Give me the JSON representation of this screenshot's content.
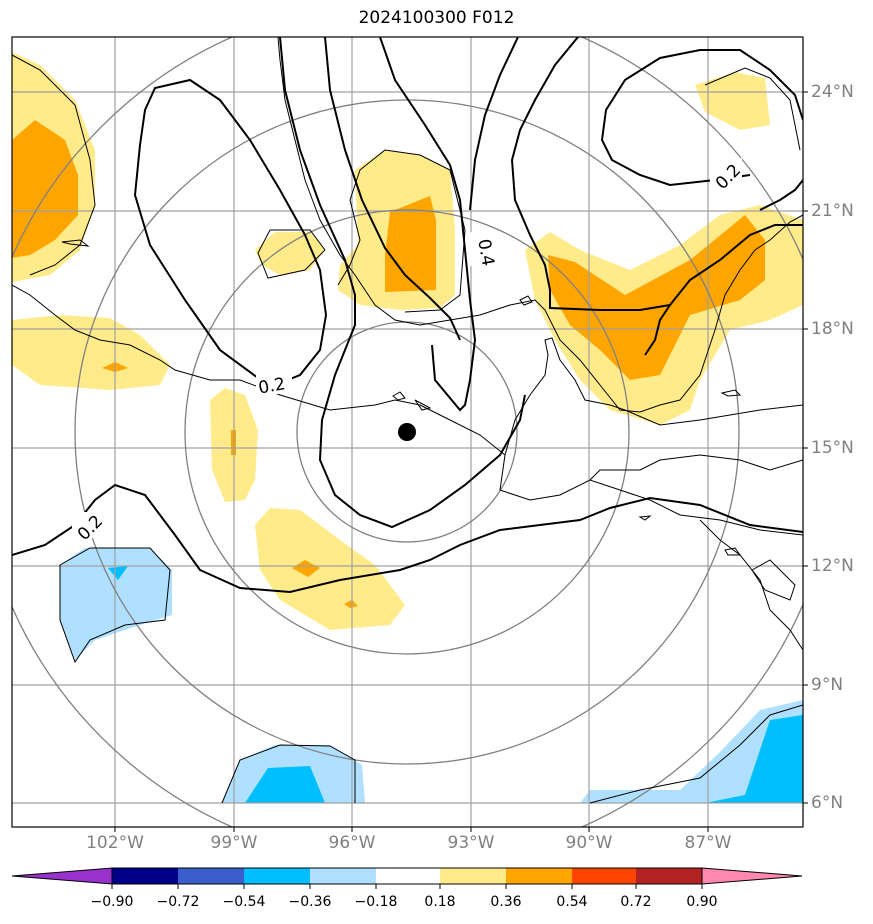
{
  "title": "2024100300 F012",
  "map": {
    "lon_labels": [
      "102°W",
      "99°W",
      "96°W",
      "93°W",
      "90°W",
      "87°W"
    ],
    "lat_labels": [
      "24°N",
      "21°N",
      "18°N",
      "15°N",
      "12°N",
      "9°N",
      "6°N"
    ],
    "lon_range": [
      -104.6,
      -84.6
    ],
    "lat_range": [
      5.4,
      25.4
    ],
    "storm_center": {
      "lon": -94.7,
      "lat": 15.4
    },
    "contour_labels": [
      "0.2",
      "0.2",
      "0.2",
      "0.4"
    ],
    "grid": true,
    "colors": {
      "grid": "#a0a0a0",
      "range_rings": "#808080",
      "coastline": "#000000",
      "contour": "#000000"
    }
  },
  "colorbar": {
    "tick_labels": [
      "−0.90",
      "−0.72",
      "−0.54",
      "−0.36",
      "−0.18",
      "0.18",
      "0.36",
      "0.54",
      "0.72",
      "0.90"
    ],
    "colors": [
      "#9932cc",
      "#00008b",
      "#3a5fcd",
      "#00bfff",
      "#b0e0ff",
      "#ffffff",
      "#ffeb8a",
      "#ffa500",
      "#ff4500",
      "#b22222",
      "#ff88b0"
    ],
    "extend": "both"
  }
}
